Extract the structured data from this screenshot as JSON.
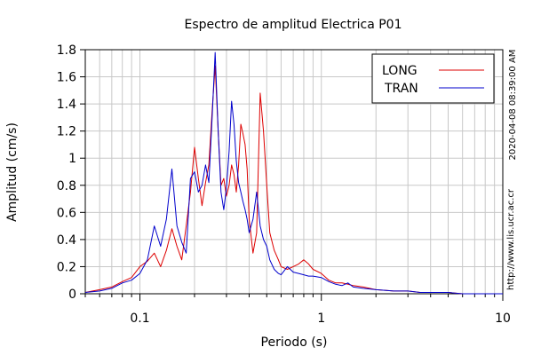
{
  "chart_data": {
    "type": "line",
    "title": "Espectro de amplitud Electrica P01",
    "xlabel": "Periodo (s)",
    "ylabel": "Amplitud (cm/s)",
    "x_scale": "log",
    "xlim": [
      0.05,
      10
    ],
    "ylim": [
      0,
      1.8
    ],
    "grid": true,
    "legend_position": "top-right",
    "x_ticks": [
      {
        "value": 0.1,
        "label": "0.1"
      },
      {
        "value": 1,
        "label": "1"
      },
      {
        "value": 10,
        "label": "10"
      }
    ],
    "y_ticks": [
      {
        "value": 0,
        "label": "0"
      },
      {
        "value": 0.2,
        "label": "0.2"
      },
      {
        "value": 0.4,
        "label": "0.4"
      },
      {
        "value": 0.6,
        "label": "0.6"
      },
      {
        "value": 0.8,
        "label": "0.8"
      },
      {
        "value": 1.0,
        "label": "1"
      },
      {
        "value": 1.2,
        "label": "1.2"
      },
      {
        "value": 1.4,
        "label": "1.4"
      },
      {
        "value": 1.6,
        "label": "1.6"
      },
      {
        "value": 1.8,
        "label": "1.8"
      }
    ],
    "series": [
      {
        "name": "LONG",
        "color": "#dd0000",
        "x": [
          0.05,
          0.06,
          0.07,
          0.08,
          0.09,
          0.1,
          0.11,
          0.12,
          0.13,
          0.14,
          0.15,
          0.16,
          0.17,
          0.18,
          0.19,
          0.2,
          0.21,
          0.22,
          0.23,
          0.24,
          0.25,
          0.26,
          0.27,
          0.28,
          0.29,
          0.3,
          0.31,
          0.32,
          0.33,
          0.34,
          0.35,
          0.36,
          0.37,
          0.38,
          0.39,
          0.4,
          0.42,
          0.44,
          0.46,
          0.48,
          0.5,
          0.52,
          0.55,
          0.58,
          0.6,
          0.65,
          0.7,
          0.75,
          0.8,
          0.85,
          0.9,
          1.0,
          1.1,
          1.2,
          1.3,
          1.4,
          1.5,
          1.7,
          2.0,
          2.5,
          3.0,
          3.5,
          4.0,
          5.0,
          6.0,
          8.0,
          10.0
        ],
        "y": [
          0.01,
          0.03,
          0.05,
          0.09,
          0.12,
          0.2,
          0.24,
          0.3,
          0.2,
          0.32,
          0.48,
          0.35,
          0.25,
          0.5,
          0.75,
          1.08,
          0.85,
          0.65,
          0.82,
          0.95,
          1.35,
          1.68,
          1.2,
          0.8,
          0.85,
          0.72,
          0.8,
          0.95,
          0.88,
          0.75,
          0.95,
          1.25,
          1.18,
          1.1,
          0.92,
          0.55,
          0.3,
          0.45,
          1.48,
          1.2,
          0.8,
          0.45,
          0.32,
          0.25,
          0.2,
          0.18,
          0.2,
          0.22,
          0.25,
          0.22,
          0.18,
          0.15,
          0.1,
          0.08,
          0.08,
          0.07,
          0.06,
          0.05,
          0.03,
          0.02,
          0.02,
          0.01,
          0.01,
          0.01,
          0.0,
          0.0,
          0.0
        ]
      },
      {
        "name": "TRAN",
        "color": "#0000cc",
        "x": [
          0.05,
          0.06,
          0.07,
          0.08,
          0.09,
          0.1,
          0.11,
          0.12,
          0.13,
          0.14,
          0.15,
          0.16,
          0.17,
          0.18,
          0.19,
          0.2,
          0.21,
          0.22,
          0.23,
          0.24,
          0.25,
          0.26,
          0.27,
          0.28,
          0.29,
          0.3,
          0.31,
          0.32,
          0.33,
          0.34,
          0.35,
          0.36,
          0.37,
          0.38,
          0.39,
          0.4,
          0.42,
          0.44,
          0.46,
          0.48,
          0.5,
          0.52,
          0.55,
          0.58,
          0.6,
          0.65,
          0.7,
          0.75,
          0.8,
          0.85,
          0.9,
          1.0,
          1.1,
          1.2,
          1.3,
          1.4,
          1.5,
          1.7,
          2.0,
          2.5,
          3.0,
          3.5,
          4.0,
          5.0,
          6.0,
          8.0,
          10.0
        ],
        "y": [
          0.01,
          0.02,
          0.04,
          0.08,
          0.1,
          0.15,
          0.25,
          0.5,
          0.35,
          0.55,
          0.92,
          0.5,
          0.38,
          0.3,
          0.85,
          0.9,
          0.75,
          0.8,
          0.95,
          0.82,
          1.3,
          1.78,
          1.2,
          0.75,
          0.62,
          0.78,
          1.05,
          1.42,
          1.25,
          0.98,
          0.82,
          0.75,
          0.68,
          0.62,
          0.55,
          0.45,
          0.55,
          0.75,
          0.5,
          0.4,
          0.35,
          0.25,
          0.18,
          0.15,
          0.14,
          0.2,
          0.16,
          0.15,
          0.14,
          0.13,
          0.13,
          0.12,
          0.09,
          0.07,
          0.06,
          0.08,
          0.05,
          0.04,
          0.03,
          0.02,
          0.02,
          0.01,
          0.01,
          0.01,
          0.0,
          0.0,
          0.0
        ]
      }
    ]
  },
  "side_annotations": {
    "timestamp": "2020-04-08 08:39:00 AM",
    "url": "http://www.lis.ucr.ac.cr"
  }
}
